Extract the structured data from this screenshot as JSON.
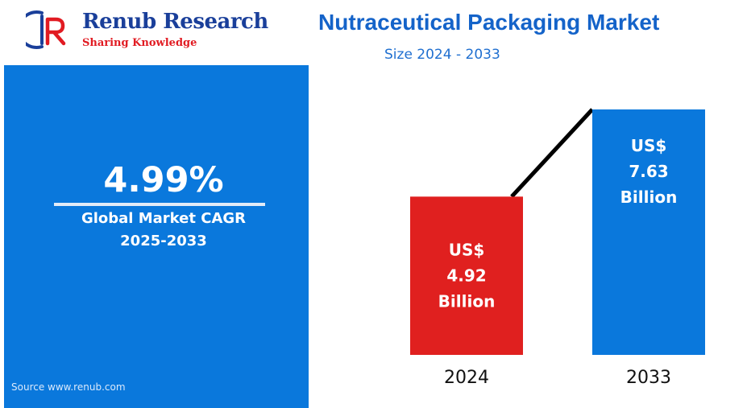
{
  "brand": {
    "name": "Renub Research",
    "tagline": "Sharing Knowledge"
  },
  "header": {
    "title": "Nutraceutical Packaging Market",
    "subtitle": "Size 2024 - 2033"
  },
  "summary": {
    "cagr": "4.99%",
    "cagr_label": "Global Market CAGR",
    "cagr_period": "2025-2033",
    "source": "Source  www.renub.com"
  },
  "colors": {
    "panel": "#0a78dc",
    "bar_2024": "#e0201f",
    "bar_2033": "#0a78dc",
    "title": "#1463c9",
    "brand_blue": "#1a3f9a",
    "brand_red": "#e11b22"
  },
  "chart_data": {
    "type": "bar",
    "categories": [
      "2024",
      "2033"
    ],
    "values": [
      4.92,
      7.63
    ],
    "unit": "US$ Billion",
    "bar_labels": [
      [
        "US$",
        "4.92",
        "Billion"
      ],
      [
        "US$",
        "7.63",
        "Billion"
      ]
    ],
    "connector_line": true,
    "title": "",
    "xlabel": "",
    "ylabel": "",
    "ylim": [
      0,
      7.63
    ]
  }
}
